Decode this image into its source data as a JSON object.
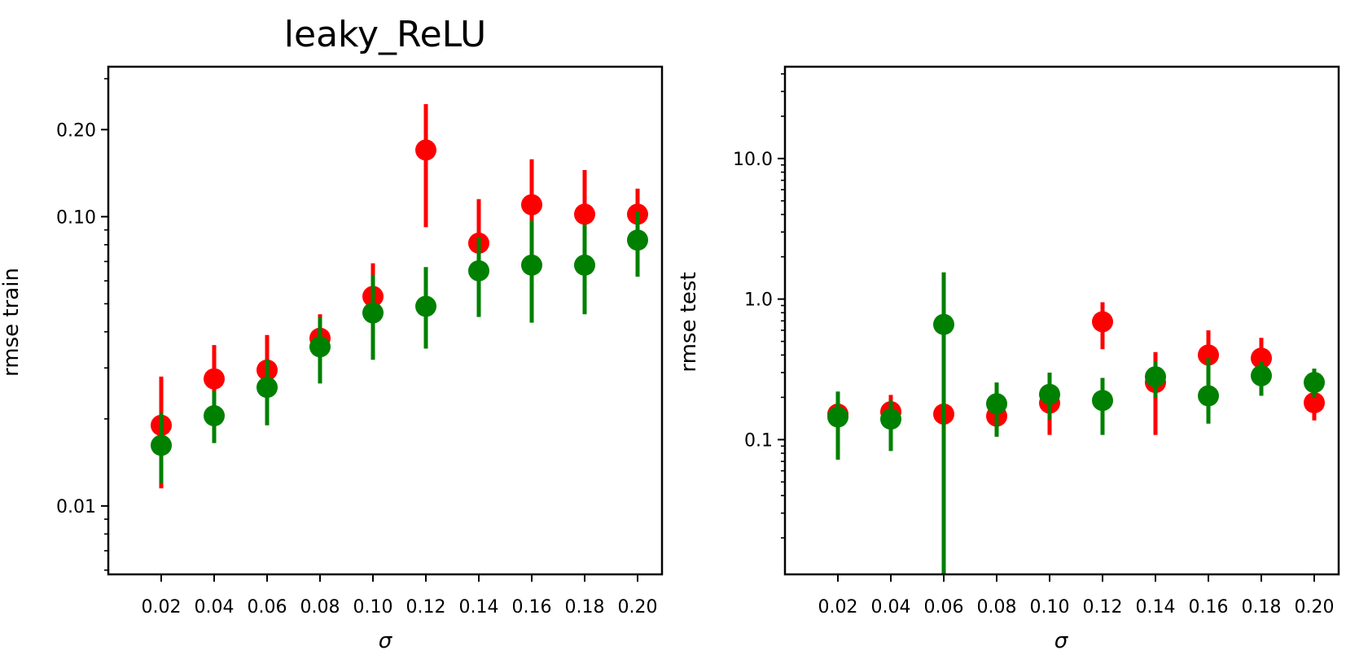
{
  "chart_data": [
    {
      "type": "scatter",
      "title": "leaky_ReLU",
      "xlabel": "σ",
      "ylabel": "rmse train",
      "yscale": "log",
      "ylim": [
        0.0058,
        0.33
      ],
      "x": [
        0.02,
        0.04,
        0.06,
        0.08,
        0.1,
        0.12,
        0.14,
        0.16,
        0.18,
        0.2
      ],
      "x_tick_labels": [
        "0.02",
        "0.04",
        "0.06",
        "0.08",
        "0.10",
        "0.12",
        "0.14",
        "0.16",
        "0.18",
        "0.20"
      ],
      "y_ticks": [
        0.01,
        0.1,
        0.2
      ],
      "y_tick_labels": [
        "0.01",
        "0.10",
        "0.20"
      ],
      "series": [
        {
          "color": "#ff0000",
          "values": [
            0.019,
            0.0275,
            0.0295,
            0.038,
            0.053,
            0.17,
            0.081,
            0.11,
            0.102,
            0.102
          ],
          "lower": [
            0.0115,
            0.019,
            0.021,
            0.031,
            0.039,
            0.092,
            0.058,
            0.079,
            0.076,
            0.085
          ],
          "upper": [
            0.028,
            0.036,
            0.039,
            0.046,
            0.069,
            0.245,
            0.115,
            0.158,
            0.145,
            0.125
          ]
        },
        {
          "color": "#008000",
          "values": [
            0.0162,
            0.0205,
            0.0257,
            0.0355,
            0.0465,
            0.049,
            0.065,
            0.068,
            0.068,
            0.083
          ],
          "lower": [
            0.012,
            0.0165,
            0.019,
            0.0265,
            0.032,
            0.035,
            0.045,
            0.043,
            0.046,
            0.062
          ],
          "upper": [
            0.021,
            0.025,
            0.032,
            0.045,
            0.063,
            0.067,
            0.085,
            0.097,
            0.094,
            0.104
          ]
        }
      ]
    },
    {
      "type": "scatter",
      "title": "",
      "xlabel": "σ",
      "ylabel": "rmse test",
      "yscale": "log",
      "ylim": [
        0.011,
        45
      ],
      "x": [
        0.02,
        0.04,
        0.06,
        0.08,
        0.1,
        0.12,
        0.14,
        0.16,
        0.18,
        0.2
      ],
      "x_tick_labels": [
        "0.02",
        "0.04",
        "0.06",
        "0.08",
        "0.10",
        "0.12",
        "0.14",
        "0.16",
        "0.18",
        "0.20"
      ],
      "y_ticks": [
        0.1,
        1.0,
        10.0
      ],
      "y_tick_labels": [
        "0.1",
        "1.0",
        "10.0"
      ],
      "series": [
        {
          "color": "#ff0000",
          "values": [
            0.152,
            0.158,
            0.152,
            0.147,
            0.182,
            0.69,
            0.255,
            0.4,
            0.38,
            0.183
          ],
          "lower": [
            0.11,
            0.12,
            0.11,
            0.105,
            0.108,
            0.44,
            0.108,
            0.26,
            0.27,
            0.137
          ],
          "upper": [
            0.2,
            0.208,
            0.19,
            0.2,
            0.24,
            0.95,
            0.42,
            0.6,
            0.53,
            0.24
          ]
        },
        {
          "color": "#008000",
          "values": [
            0.145,
            0.14,
            0.66,
            0.18,
            0.21,
            0.19,
            0.28,
            0.205,
            0.285,
            0.255
          ],
          "lower": [
            0.072,
            0.083,
            0.011,
            0.105,
            0.14,
            0.108,
            0.2,
            0.13,
            0.205,
            0.2
          ],
          "upper": [
            0.22,
            0.19,
            1.55,
            0.255,
            0.3,
            0.275,
            0.36,
            0.38,
            0.36,
            0.32
          ]
        }
      ]
    }
  ]
}
